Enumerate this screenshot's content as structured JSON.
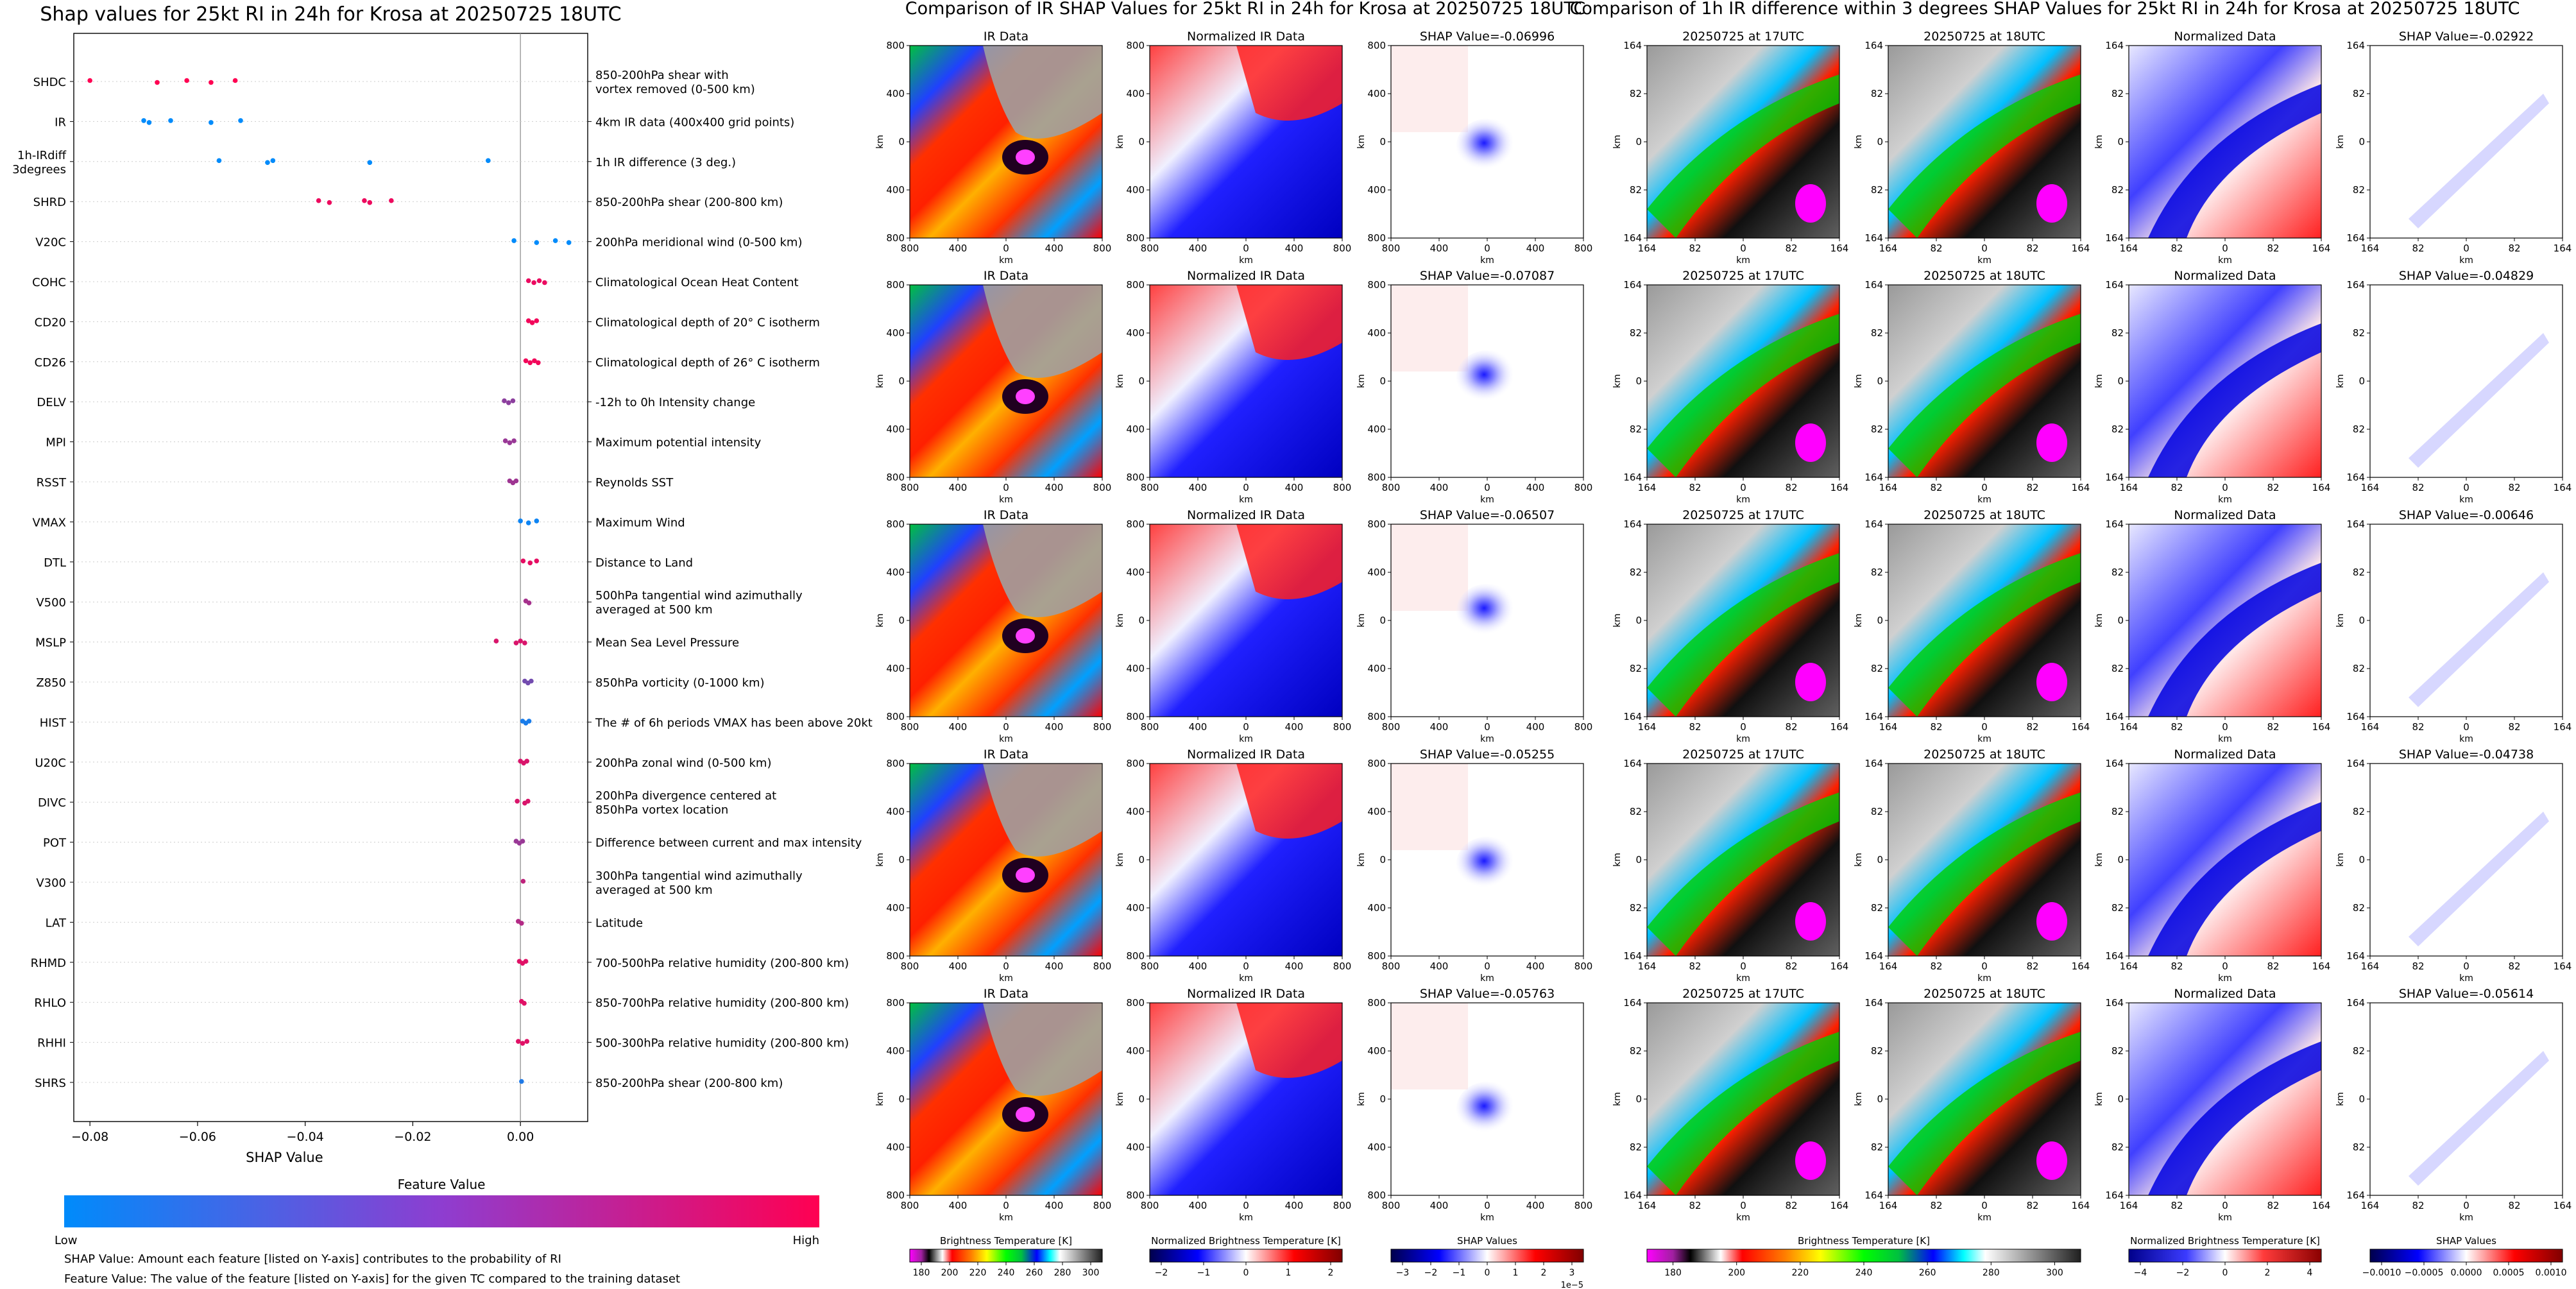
{
  "beeswarm": {
    "title": "Shap values for 25kt RI in 24h for Krosa at 20250725 18UTC",
    "xlabel": "SHAP Value",
    "colorbar_title": "Feature Value",
    "colorbar_low": "Low",
    "colorbar_high": "High",
    "colorbar_colors": [
      "#008bfb",
      "#ff0052"
    ],
    "footnote1": "SHAP Value: Amount each feature [listed on Y-axis] contributes to the probability of RI",
    "footnote2": "Feature Value: The value of the feature [listed on Y-axis] for the given TC compared to the training dataset"
  },
  "ir_panel": {
    "title": "Comparison of IR SHAP Values for 25kt RI in 24h for Krosa at 20250725 18UTC",
    "col_titles": [
      "IR Data",
      "Normalized IR Data"
    ],
    "shap_titles": [
      "SHAP Value=-0.06996",
      "SHAP Value=-0.07087",
      "SHAP Value=-0.06507",
      "SHAP Value=-0.05255",
      "SHAP Value=-0.05763"
    ],
    "axis_label": "km",
    "ticks_x": [
      "800",
      "400",
      "0",
      "400",
      "800"
    ],
    "ticks_y": [
      "800",
      "400",
      "0",
      "400",
      "800"
    ],
    "colorbars": [
      {
        "label": "Brightness Temperature [K]",
        "ticks": [
          "180",
          "200",
          "220",
          "240",
          "260",
          "280",
          "300"
        ],
        "offset": ""
      },
      {
        "label": "Normalized Brightness Temperature [K]",
        "ticks": [
          "−2",
          "−1",
          "0",
          "1",
          "2"
        ],
        "offset": ""
      },
      {
        "label": "SHAP Values",
        "ticks": [
          "−3",
          "−2",
          "−1",
          "0",
          "1",
          "2",
          "3"
        ],
        "offset": "1e−5"
      }
    ]
  },
  "diff_panel": {
    "title": "Comparison of 1h IR difference within 3 degrees SHAP Values for 25kt RI in 24h for Krosa at 20250725 18UTC",
    "col_titles": [
      "20250725 at 17UTC",
      "20250725 at 18UTC",
      "Normalized Data"
    ],
    "shap_titles": [
      "SHAP Value=-0.02922",
      "SHAP Value=-0.04829",
      "SHAP Value=-0.00646",
      "SHAP Value=-0.04738",
      "SHAP Value=-0.05614"
    ],
    "axis_label": "km",
    "ticks_x": [
      "164",
      "82",
      "0",
      "82",
      "164"
    ],
    "ticks_y": [
      "164",
      "82",
      "0",
      "82",
      "164"
    ],
    "colorbars": [
      {
        "label": "Brightness Temperature [K]",
        "ticks": [
          "180",
          "200",
          "220",
          "240",
          "260",
          "280",
          "300"
        ],
        "offset": ""
      },
      {
        "label": "Normalized Brightness Temperature [K]",
        "ticks": [
          "−4",
          "−2",
          "0",
          "2",
          "4"
        ],
        "offset": ""
      },
      {
        "label": "SHAP Values",
        "ticks": [
          "−0.0010",
          "−0.0005",
          "0.0000",
          "0.0005",
          "0.0010"
        ],
        "offset": ""
      }
    ]
  },
  "chart_data": {
    "type": "scatter",
    "subtype": "shap-beeswarm",
    "title": "Shap values for 25kt RI in 24h for Krosa at 20250725 18UTC",
    "xlabel": "SHAP Value",
    "xlim": [
      -0.083,
      0.0125
    ],
    "xticks": [
      -0.08,
      -0.06,
      -0.04,
      -0.02,
      0.0
    ],
    "xtick_labels": [
      "−0.08",
      "−0.06",
      "−0.04",
      "−0.02",
      "0.00"
    ],
    "features": [
      {
        "name": "SHDC",
        "desc": "850-200hPa shear with\nvortex removed (0-500 km)",
        "values": [
          -0.08,
          -0.0675,
          -0.062,
          -0.0575,
          -0.053
        ],
        "color": 1.0
      },
      {
        "name": "IR",
        "desc": "4km IR data (400x400 grid points)",
        "values": [
          -0.07,
          -0.069,
          -0.065,
          -0.0575,
          -0.052
        ],
        "color": 0.0
      },
      {
        "name": "1h-IRdiff\n3degrees",
        "desc": "1h IR difference (3 deg.)",
        "values": [
          -0.056,
          -0.047,
          -0.046,
          -0.028,
          -0.006
        ],
        "color": 0.0
      },
      {
        "name": "SHRD",
        "desc": "850-200hPa shear (200-800 km)",
        "values": [
          -0.0375,
          -0.0355,
          -0.029,
          -0.028,
          -0.024
        ],
        "color": 0.93
      },
      {
        "name": "V20C",
        "desc": "200hPa meridional wind (0-500 km)",
        "values": [
          -0.0012,
          0.003,
          0.0065,
          0.009
        ],
        "color": 0.0
      },
      {
        "name": "COHC",
        "desc": "Climatological Ocean Heat Content",
        "values": [
          0.0015,
          0.0025,
          0.0035,
          0.0045
        ],
        "color": 0.92
      },
      {
        "name": "CD20",
        "desc": "Climatological depth of 20° C isotherm",
        "values": [
          0.0015,
          0.0022,
          0.003
        ],
        "color": 0.95
      },
      {
        "name": "CD26",
        "desc": "Climatological depth of 26° C isotherm",
        "values": [
          0.001,
          0.0018,
          0.0026,
          0.0033
        ],
        "color": 0.95
      },
      {
        "name": "DELV",
        "desc": "-12h to 0h Intensity change",
        "values": [
          -0.003,
          -0.0022,
          -0.0014
        ],
        "color": 0.55
      },
      {
        "name": "MPI",
        "desc": "Maximum potential intensity",
        "values": [
          -0.0028,
          -0.002,
          -0.0012
        ],
        "color": 0.6
      },
      {
        "name": "RSST",
        "desc": "Reynolds SST",
        "values": [
          -0.002,
          -0.0014,
          -0.0008
        ],
        "color": 0.62
      },
      {
        "name": "VMAX",
        "desc": "Maximum Wind",
        "values": [
          0.0,
          0.0015,
          0.003
        ],
        "color": 0.05
      },
      {
        "name": "DTL",
        "desc": "Distance to Land",
        "values": [
          0.0005,
          0.0018,
          0.003
        ],
        "color": 0.9
      },
      {
        "name": "V500",
        "desc": "500hPa tangential wind azimuthally\naveraged at 500 km",
        "values": [
          0.001,
          0.0016
        ],
        "color": 0.65
      },
      {
        "name": "MSLP",
        "desc": "Mean Sea Level Pressure",
        "values": [
          -0.0045,
          -0.0008,
          0.0,
          0.0008
        ],
        "color": 0.85
      },
      {
        "name": "Z850",
        "desc": "850hPa vorticity (0-1000 km)",
        "values": [
          0.0008,
          0.0014,
          0.002
        ],
        "color": 0.45
      },
      {
        "name": "HIST",
        "desc": "The # of 6h periods VMAX has been above 20kt",
        "values": [
          0.0004,
          0.001,
          0.0016
        ],
        "color": 0.1
      },
      {
        "name": "U20C",
        "desc": "200hPa zonal wind (0-500 km)",
        "values": [
          0.0,
          0.0006,
          0.0012
        ],
        "color": 0.85
      },
      {
        "name": "DIVC",
        "desc": "200hPa divergence centered at\n850hPa vortex location",
        "values": [
          -0.0006,
          0.0008,
          0.0014
        ],
        "color": 0.85
      },
      {
        "name": "POT",
        "desc": "Difference between current and max intensity",
        "values": [
          -0.0008,
          -0.0002,
          0.0004
        ],
        "color": 0.6
      },
      {
        "name": "V300",
        "desc": "300hPa tangential wind azimuthally\naveraged at 500 km",
        "values": [
          0.0005
        ],
        "color": 0.75
      },
      {
        "name": "LAT",
        "desc": "Latitude",
        "values": [
          -0.0004,
          0.0002
        ],
        "color": 0.7
      },
      {
        "name": "RHMD",
        "desc": "700-500hPa relative humidity (200-800 km)",
        "values": [
          -0.0002,
          0.0004,
          0.001
        ],
        "color": 0.88
      },
      {
        "name": "RHLO",
        "desc": "850-700hPa relative humidity (200-800 km)",
        "values": [
          0.0002,
          0.0007
        ],
        "color": 0.88
      },
      {
        "name": "RHHI",
        "desc": "500-300hPa relative humidity (200-800 km)",
        "values": [
          -0.0004,
          0.0004,
          0.0012
        ],
        "color": 0.88
      },
      {
        "name": "SHRS",
        "desc": "850-200hPa shear (200-800 km)",
        "values": [
          0.0002
        ],
        "color": 0.12
      }
    ]
  }
}
